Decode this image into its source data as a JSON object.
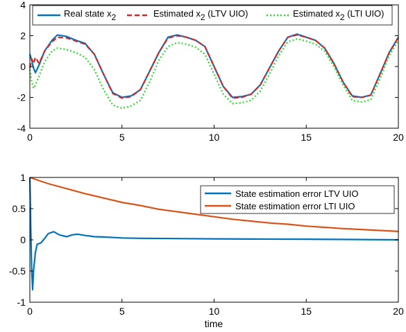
{
  "chart_data": [
    {
      "type": "line",
      "xlabel": "",
      "ylabel": "",
      "xlim": [
        0,
        20
      ],
      "ylim": [
        -4,
        4
      ],
      "x_ticks": [
        "0",
        "5",
        "10",
        "15",
        "20"
      ],
      "y_ticks": [
        "-4",
        "-2",
        "0",
        "2",
        "4"
      ],
      "grid": false,
      "legend_position": "top",
      "series": [
        {
          "name": "Real state x2",
          "label_main": "Real state x",
          "label_sub": "2",
          "label_tail": "",
          "color": "#0072BD",
          "style": "solid",
          "x": [
            0,
            0.1,
            0.2,
            0.3,
            0.5,
            0.8,
            1.2,
            1.5,
            2,
            2.5,
            3,
            3.5,
            4,
            4.5,
            5,
            5.5,
            6,
            6.5,
            7,
            7.5,
            8,
            8.5,
            9,
            9.5,
            10,
            10.5,
            11,
            11.5,
            12,
            12.5,
            13,
            13.5,
            14,
            14.5,
            15,
            15.5,
            16,
            16.5,
            17,
            17.5,
            18,
            18.5,
            19,
            19.5,
            20
          ],
          "y": [
            0.8,
            0.4,
            -0.1,
            -0.4,
            0.1,
            1.0,
            1.7,
            2.05,
            1.95,
            1.7,
            1.5,
            0.8,
            -0.5,
            -1.7,
            -2.0,
            -1.9,
            -1.5,
            -0.3,
            0.9,
            1.9,
            2.05,
            1.9,
            1.7,
            1.3,
            0.0,
            -1.3,
            -2.0,
            -1.95,
            -1.8,
            -1.2,
            -0.1,
            1.0,
            1.9,
            2.1,
            1.9,
            1.7,
            1.2,
            0.2,
            -1.0,
            -1.9,
            -2.0,
            -1.85,
            -0.5,
            0.9,
            1.9
          ]
        },
        {
          "name": "Estimated x2 (LTV UIO)",
          "label_main": "Estimated x",
          "label_sub": "2",
          "label_tail": " (LTV UIO)",
          "color": "#D62728",
          "style": "dashed",
          "x": [
            0,
            0.1,
            0.2,
            0.3,
            0.5,
            0.8,
            1.2,
            1.5,
            2,
            2.5,
            3,
            3.5,
            4,
            4.5,
            5,
            5.5,
            6,
            6.5,
            7,
            7.5,
            8,
            8.5,
            9,
            9.5,
            10,
            10.5,
            11,
            11.5,
            12,
            12.5,
            13,
            13.5,
            14,
            14.5,
            15,
            15.5,
            16,
            16.5,
            17,
            17.5,
            18,
            18.5,
            19,
            19.5,
            20
          ],
          "y": [
            -0.1,
            0.5,
            0.2,
            0.6,
            0.2,
            1.0,
            1.6,
            1.9,
            1.85,
            1.65,
            1.45,
            0.8,
            -0.5,
            -1.75,
            -2.05,
            -1.95,
            -1.5,
            -0.3,
            0.9,
            1.85,
            2.0,
            1.9,
            1.7,
            1.3,
            0.0,
            -1.3,
            -2.05,
            -2.0,
            -1.8,
            -1.2,
            -0.1,
            1.0,
            1.9,
            2.05,
            1.9,
            1.7,
            1.2,
            0.2,
            -1.0,
            -1.95,
            -2.0,
            -1.85,
            -0.5,
            0.9,
            1.9
          ]
        },
        {
          "name": "Estimated x2 (LTI UIO)",
          "label_main": "Estimated x",
          "label_sub": "2",
          "label_tail": " (LTI UIO)",
          "color": "#22DD22",
          "style": "dotted",
          "x": [
            0,
            0.1,
            0.2,
            0.3,
            0.5,
            0.8,
            1.2,
            1.5,
            2,
            2.5,
            3,
            3.5,
            4,
            4.5,
            5,
            5.5,
            6,
            6.5,
            7,
            7.5,
            8,
            8.5,
            9,
            9.5,
            10,
            10.5,
            11,
            11.5,
            12,
            12.5,
            13,
            13.5,
            14,
            14.5,
            15,
            15.5,
            16,
            16.5,
            17,
            17.5,
            18,
            18.5,
            19,
            19.5,
            20
          ],
          "y": [
            -0.2,
            -1.0,
            -1.4,
            -1.2,
            -0.6,
            0.3,
            1.0,
            1.2,
            1.1,
            0.9,
            0.6,
            -0.2,
            -1.5,
            -2.5,
            -2.7,
            -2.55,
            -2.2,
            -1.0,
            0.4,
            1.3,
            1.55,
            1.45,
            1.25,
            0.8,
            -0.5,
            -1.8,
            -2.4,
            -2.35,
            -2.2,
            -1.6,
            -0.5,
            0.7,
            1.6,
            1.8,
            1.65,
            1.45,
            1.0,
            0.0,
            -1.2,
            -2.2,
            -2.3,
            -2.15,
            -0.8,
            0.7,
            1.7
          ]
        }
      ]
    },
    {
      "type": "line",
      "xlabel": "time",
      "ylabel": "",
      "xlim": [
        0,
        20
      ],
      "ylim": [
        -1,
        1
      ],
      "x_ticks": [
        "0",
        "5",
        "10",
        "15",
        "20"
      ],
      "y_ticks": [
        "-1",
        "-0.5",
        "0",
        "0.5",
        "1"
      ],
      "grid": false,
      "legend_position": "top-right",
      "series": [
        {
          "name": "State estimation error LTV UIO",
          "color": "#0072BD",
          "style": "solid",
          "x": [
            0,
            0.05,
            0.1,
            0.15,
            0.2,
            0.3,
            0.4,
            0.6,
            0.8,
            1.0,
            1.3,
            1.6,
            2.0,
            2.3,
            2.6,
            3.0,
            3.5,
            4.0,
            5,
            6,
            8,
            10,
            12,
            15,
            18,
            20
          ],
          "y": [
            1.0,
            0.2,
            -0.5,
            -0.8,
            -0.5,
            -0.2,
            -0.07,
            -0.05,
            0.02,
            0.1,
            0.13,
            0.08,
            0.05,
            0.08,
            0.09,
            0.07,
            0.05,
            0.045,
            0.03,
            0.025,
            0.02,
            0.015,
            0.012,
            0.01,
            0.005,
            0.0
          ]
        },
        {
          "name": "State estimation error LTI UIO",
          "color": "#D95319",
          "style": "solid",
          "x": [
            0,
            1,
            2,
            3,
            4,
            5,
            6,
            7,
            8,
            9,
            10,
            11,
            12,
            13,
            14,
            15,
            16,
            17,
            18,
            19,
            20
          ],
          "y": [
            1.0,
            0.9,
            0.82,
            0.74,
            0.67,
            0.6,
            0.55,
            0.49,
            0.45,
            0.41,
            0.37,
            0.33,
            0.3,
            0.27,
            0.25,
            0.22,
            0.2,
            0.18,
            0.165,
            0.15,
            0.135
          ]
        }
      ]
    }
  ]
}
